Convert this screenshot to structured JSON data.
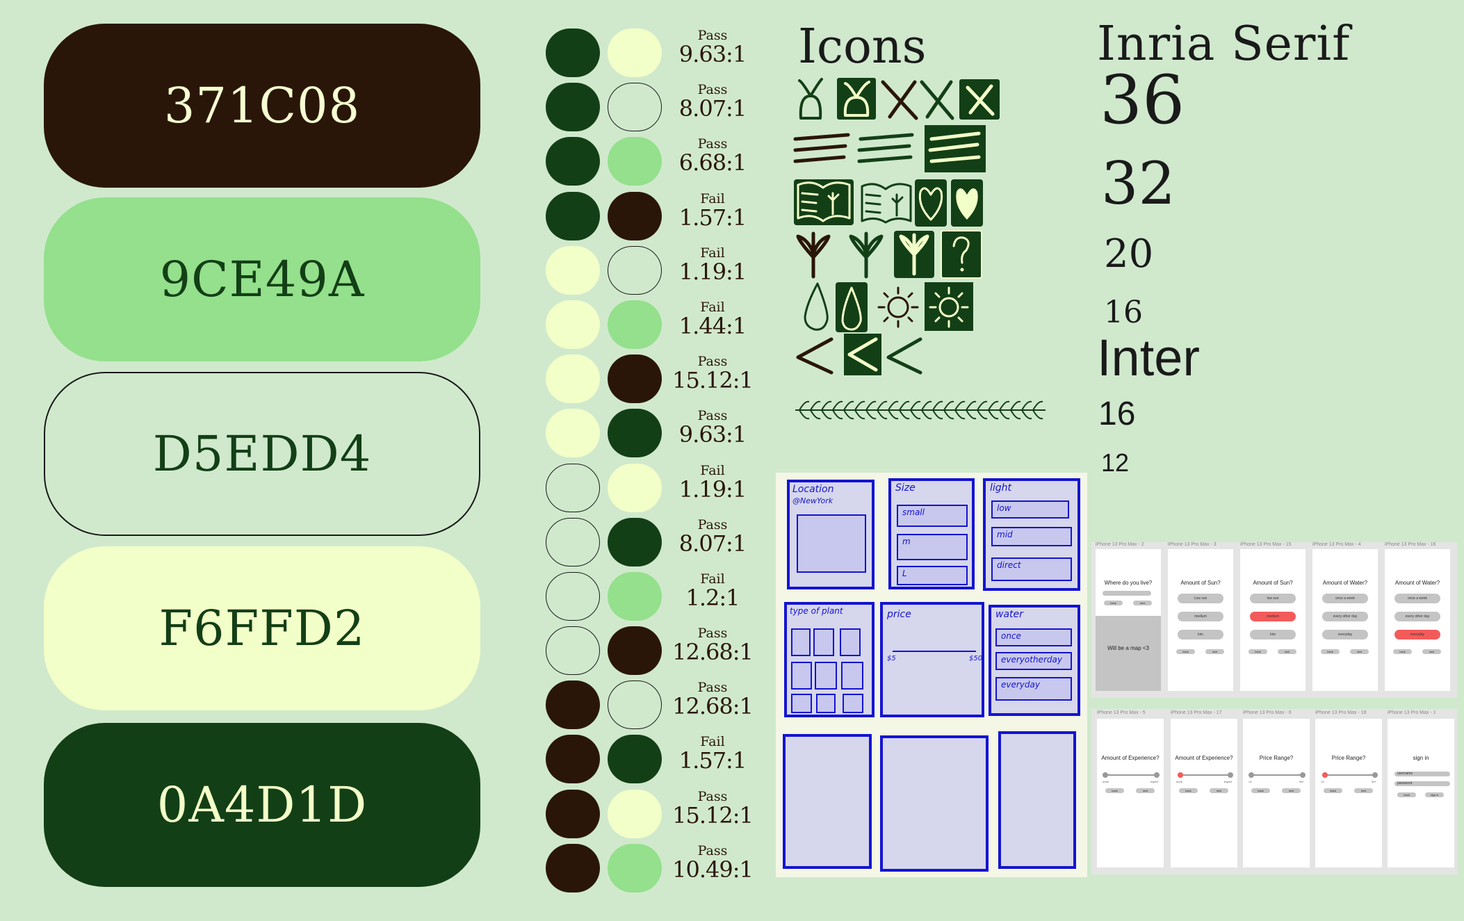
{
  "palette": [
    {
      "hex": "371C08",
      "bg": "#2A1608",
      "fg": "#F6FFD2",
      "border": "none"
    },
    {
      "hex": "9CE49A",
      "bg": "#94E08C",
      "fg": "#133F16",
      "border": "none"
    },
    {
      "hex": "D5EDD4",
      "bg": "#D0E9CD",
      "fg": "#133F16",
      "border": "#1A1A1A"
    },
    {
      "hex": "F6FFD2",
      "bg": "#F3FFC8",
      "fg": "#133F16",
      "border": "none"
    },
    {
      "hex": "0A4D1D",
      "bg": "#133F16",
      "fg": "#F3FFC8",
      "border": "none"
    }
  ],
  "colors": {
    "brown": "#2A1608",
    "green": "#94E08C",
    "mint": "#D0E9CD",
    "cream": "#F3FFC8",
    "dark": "#133F16",
    "wire_blue": "#1414D2"
  },
  "contrast": [
    {
      "a": "dark",
      "b": "cream",
      "result": "Pass",
      "ratio": "9.63:1"
    },
    {
      "a": "dark",
      "b": "mint",
      "result": "Pass",
      "ratio": "8.07:1"
    },
    {
      "a": "dark",
      "b": "green",
      "result": "Pass",
      "ratio": "6.68:1"
    },
    {
      "a": "dark",
      "b": "brown",
      "result": "Fail",
      "ratio": "1.57:1"
    },
    {
      "a": "cream",
      "b": "mint",
      "result": "Fail",
      "ratio": "1.19:1"
    },
    {
      "a": "cream",
      "b": "green",
      "result": "Fail",
      "ratio": "1.44:1"
    },
    {
      "a": "cream",
      "b": "brown",
      "result": "Pass",
      "ratio": "15.12:1"
    },
    {
      "a": "cream",
      "b": "dark",
      "result": "Pass",
      "ratio": "9.63:1"
    },
    {
      "a": "mint",
      "b": "cream",
      "result": "Fail",
      "ratio": "1.19:1"
    },
    {
      "a": "mint",
      "b": "dark",
      "result": "Pass",
      "ratio": "8.07:1"
    },
    {
      "a": "mint",
      "b": "green",
      "result": "Fail",
      "ratio": "1.2:1"
    },
    {
      "a": "mint",
      "b": "brown",
      "result": "Pass",
      "ratio": "12.68:1"
    },
    {
      "a": "brown",
      "b": "mint",
      "result": "Pass",
      "ratio": "12.68:1"
    },
    {
      "a": "brown",
      "b": "dark",
      "result": "Fail",
      "ratio": "1.57:1"
    },
    {
      "a": "brown",
      "b": "cream",
      "result": "Pass",
      "ratio": "15.12:1"
    },
    {
      "a": "brown",
      "b": "green",
      "result": "Pass",
      "ratio": "10.49:1"
    }
  ],
  "icons": {
    "title": "Icons"
  },
  "typography": {
    "serif_name": "Inria Serif",
    "serif_sizes": [
      "36",
      "32",
      "20",
      "16"
    ],
    "sans_name": "Inter",
    "sans_sizes": [
      "16",
      "12"
    ]
  },
  "wireframe": {
    "location": "Location",
    "location_value": "@NewYork",
    "size": "Size",
    "size_options": [
      "small",
      "m",
      "L"
    ],
    "light": "light",
    "light_options": [
      "low",
      "mid",
      "direct"
    ],
    "plant_type": "type of plant",
    "price": "price",
    "price_min": "$5",
    "price_max": "$50",
    "water": "water",
    "water_options": [
      "once",
      "everyotherday",
      "everyday"
    ]
  },
  "screens": {
    "row1": [
      {
        "label": "iPhone 13 Pro Max - 2",
        "title": "Where do you live?",
        "map": "Will be a map <3"
      },
      {
        "label": "iPhone 13 Pro Max - 3",
        "title": "Amount of Sun?",
        "options": [
          "Low sun",
          "medium",
          "lots"
        ],
        "selected": -1
      },
      {
        "label": "iPhone 13 Pro Max - 15",
        "title": "Amount of Sun?",
        "options": [
          "low sun",
          "medium",
          "lots"
        ],
        "selected": 1
      },
      {
        "label": "iPhone 13 Pro Max - 4",
        "title": "Amount of Water?",
        "options": [
          "once a week",
          "every other day",
          "everyday"
        ],
        "selected": -1
      },
      {
        "label": "iPhone 13 Pro Max - 16",
        "title": "Amount of Water?",
        "options": [
          "once a week",
          "every other day",
          "everyday"
        ],
        "selected": 2
      }
    ],
    "row2": [
      {
        "label": "iPhone 13 Pro Max - 5",
        "title": "Amount of Experience?",
        "min": "none",
        "max": "expert",
        "knob": "grey"
      },
      {
        "label": "iPhone 13 Pro Max - 17",
        "title": "Amount of Experience?",
        "min": "none",
        "max": "expert",
        "knob": "red"
      },
      {
        "label": "iPhone 13 Pro Max - 6",
        "title": "Price Range?",
        "min": "<5",
        "max": "50+",
        "knob": "grey"
      },
      {
        "label": "iPhone 13 Pro Max - 18",
        "title": "Price Range?",
        "min": "<5",
        "max": "50+",
        "knob": "red"
      },
      {
        "label": "iPhone 13 Pro Max - 1",
        "title": "sign in",
        "fields": [
          "username",
          "password"
        ],
        "buttons": [
          "back",
          "sign in"
        ]
      }
    ],
    "back": "back",
    "next": "next"
  }
}
